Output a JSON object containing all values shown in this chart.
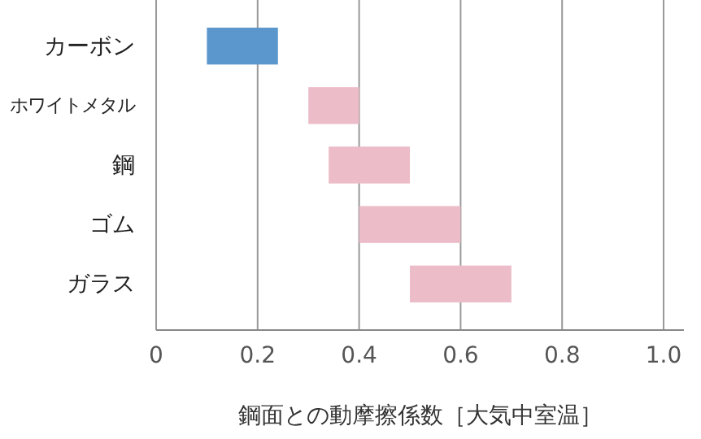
{
  "chart_data": {
    "type": "bar",
    "orientation": "horizontal",
    "xlabel": "鋼面との動摩擦係数［大気中室温］",
    "categories": [
      "カーボン",
      "ホワイトメタル",
      "鋼",
      "ゴム",
      "ガラス"
    ],
    "base": [
      0.1,
      0.3,
      0.34,
      0.4,
      0.5
    ],
    "values": [
      0.14,
      0.1,
      0.16,
      0.2,
      0.2
    ],
    "colors": [
      "#5b97cc",
      "#ecbcc8",
      "#ecbcc8",
      "#ecbcc8",
      "#ecbcc8"
    ],
    "xlim": [
      0,
      1.04
    ],
    "xticks": [
      0,
      0.2,
      0.4,
      0.6,
      0.8,
      {
        "value": 1,
        "label": "1.0"
      }
    ],
    "grid": "x"
  }
}
